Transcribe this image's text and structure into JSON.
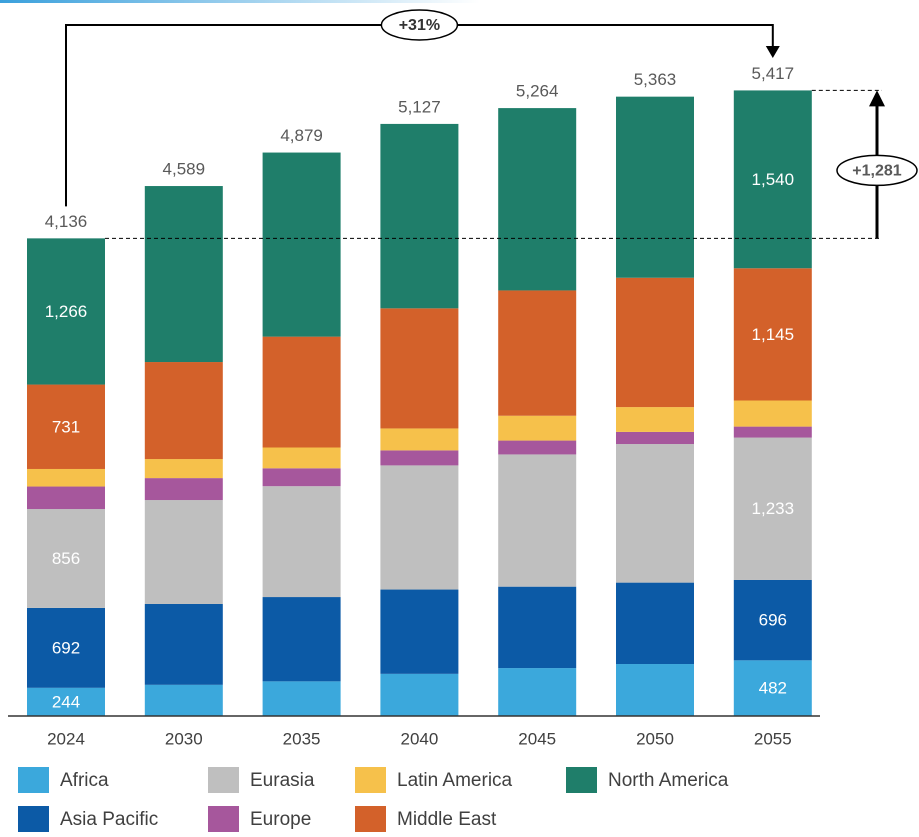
{
  "chart_data": {
    "type": "stacked_bar",
    "categories": [
      "2024",
      "2030",
      "2035",
      "2040",
      "2045",
      "2050",
      "2055"
    ],
    "ylim": [
      0,
      6200
    ],
    "series": [
      {
        "name": "Africa",
        "color": "#3ba8dc",
        "values": [
          244,
          270,
          300,
          365,
          415,
          450,
          482
        ],
        "value_labels": [
          "244",
          null,
          null,
          null,
          null,
          null,
          "482"
        ]
      },
      {
        "name": "Asia Pacific",
        "color": "#0c5aa6",
        "values": [
          692,
          700,
          730,
          730,
          705,
          705,
          696
        ],
        "value_labels": [
          "692",
          null,
          null,
          null,
          null,
          null,
          "696"
        ]
      },
      {
        "name": "Eurasia",
        "color": "#bfbfbf",
        "values": [
          856,
          900,
          960,
          1075,
          1145,
          1200,
          1233
        ],
        "value_labels": [
          "856",
          null,
          null,
          null,
          null,
          null,
          "1,233"
        ]
      },
      {
        "name": "Europe",
        "color": "#a6579c",
        "values": [
          195,
          190,
          155,
          130,
          120,
          105,
          95
        ],
        "value_labels": [
          null,
          null,
          null,
          null,
          null,
          null,
          null
        ]
      },
      {
        "name": "Latin America",
        "color": "#f6c14b",
        "values": [
          152,
          165,
          180,
          190,
          215,
          215,
          226
        ],
        "value_labels": [
          null,
          null,
          null,
          null,
          null,
          null,
          null
        ]
      },
      {
        "name": "Middle East",
        "color": "#d3612a",
        "values": [
          731,
          840,
          960,
          1040,
          1085,
          1120,
          1145
        ],
        "value_labels": [
          "731",
          null,
          null,
          null,
          null,
          null,
          "1,145"
        ]
      },
      {
        "name": "North America",
        "color": "#1f7e6a",
        "values": [
          1266,
          1524,
          1594,
          1597,
          1579,
          1568,
          1540
        ],
        "value_labels": [
          "1,266",
          null,
          null,
          null,
          null,
          null,
          "1,540"
        ]
      }
    ],
    "totals": [
      4136,
      4589,
      4879,
      5127,
      5264,
      5363,
      5417
    ],
    "total_labels": [
      "4,136",
      "4,589",
      "4,879",
      "5,127",
      "5,264",
      "5,363",
      "5,417"
    ],
    "annotations": [
      "+31%",
      "+1,281"
    ]
  }
}
